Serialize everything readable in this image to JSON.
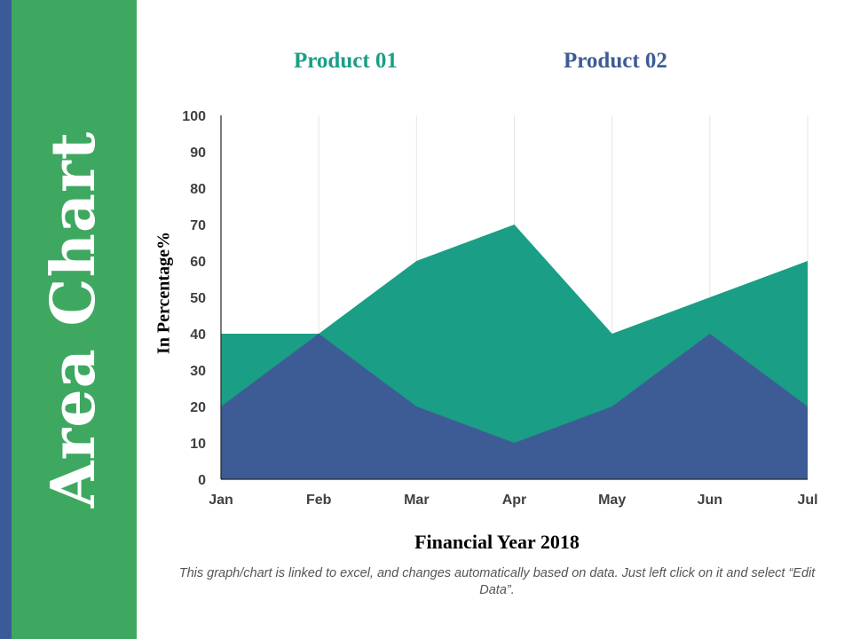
{
  "slide_title": "Area Chart",
  "footnote": "This graph/chart is linked to excel, and changes automatically based on data. Just left click on it and select “Edit Data”.",
  "colors": {
    "product_01": "#1a9e85",
    "product_02": "#3d5c95",
    "side_panel": "#3ea860",
    "side_strip": "#3c5a98"
  },
  "chart_data": {
    "type": "area",
    "categories": [
      "Jan",
      "Feb",
      "Mar",
      "Apr",
      "May",
      "Jun",
      "Jul"
    ],
    "series": [
      {
        "name": "Product 01",
        "values": [
          40,
          40,
          60,
          70,
          40,
          50,
          60
        ]
      },
      {
        "name": "Product 02",
        "values": [
          20,
          40,
          20,
          10,
          20,
          40,
          20
        ]
      }
    ],
    "yticks": [
      "0",
      "10",
      "20",
      "30",
      "40",
      "50",
      "60",
      "70",
      "80",
      "90",
      "100"
    ],
    "xlabel": "Financial Year 2018",
    "ylabel": "In Percentage%",
    "ylim": [
      0,
      100
    ],
    "grid": "vertical",
    "legend": "top"
  }
}
